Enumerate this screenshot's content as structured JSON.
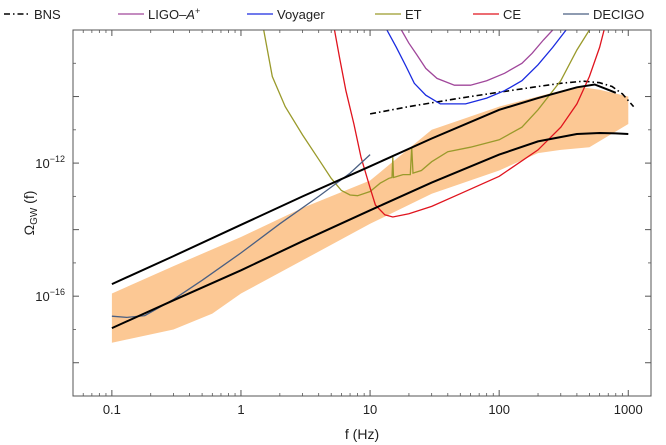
{
  "chart_data": {
    "type": "line",
    "title": "",
    "xlabel": "f (Hz)",
    "ylabel": "Ω_GW (f)",
    "ylabel_parts": {
      "main": "Ω",
      "sub": "GW",
      "rest": " (f)"
    },
    "x_scale": "log",
    "y_scale": "log",
    "xlim": [
      0.05,
      1500
    ],
    "ylim": [
      1e-19,
      1e-08
    ],
    "grid": false,
    "legend_position": "top",
    "x_ticks": [
      {
        "value": 0.1,
        "label": "0.1"
      },
      {
        "value": 1,
        "label": "1"
      },
      {
        "value": 10,
        "label": "10"
      },
      {
        "value": 100,
        "label": "100"
      },
      {
        "value": 1000,
        "label": "1000"
      }
    ],
    "y_ticks": [
      {
        "value": 1e-16,
        "base": "10",
        "exp": "−16"
      },
      {
        "value": 1e-12,
        "base": "10",
        "exp": "−12"
      }
    ],
    "legend": [
      {
        "name": "BNS",
        "color": "#000000",
        "dash": "dashdot"
      },
      {
        "name": "LIGO–A",
        "sup": "+",
        "color": "#a0479b",
        "dash": "solid"
      },
      {
        "name": "Voyager",
        "color": "#1a2be0",
        "dash": "solid"
      },
      {
        "name": "ET",
        "color": "#9a9a2b",
        "dash": "solid"
      },
      {
        "name": "CE",
        "color": "#e0141e",
        "dash": "solid"
      },
      {
        "name": "DECIGO",
        "color": "#4a5f82",
        "dash": "solid"
      }
    ],
    "band": {
      "color": "#fcc894",
      "upper": [
        [
          0.1,
          1.2e-16
        ],
        [
          0.3,
          8e-16
        ],
        [
          1,
          6e-15
        ],
        [
          3,
          4.5e-14
        ],
        [
          10,
          3e-13
        ],
        [
          30,
          1e-11
        ],
        [
          100,
          5e-11
        ],
        [
          200,
          1e-10
        ],
        [
          400,
          2e-10
        ],
        [
          600,
          1.6e-10
        ],
        [
          1000,
          1e-10
        ]
      ],
      "lower": [
        [
          0.1,
          4e-18
        ],
        [
          0.3,
          1e-17
        ],
        [
          0.6,
          3e-17
        ],
        [
          1,
          1.2e-16
        ],
        [
          3,
          1.2e-15
        ],
        [
          10,
          1.5e-14
        ],
        [
          30,
          1.2e-13
        ],
        [
          100,
          6e-13
        ],
        [
          200,
          2e-12
        ],
        [
          300,
          2.5e-12
        ],
        [
          500,
          3e-12
        ],
        [
          1000,
          1.5e-11
        ]
      ]
    },
    "envelope_upper": {
      "color": "#000000",
      "points": [
        [
          0.1,
          2.3e-16
        ],
        [
          0.3,
          1.6e-15
        ],
        [
          1,
          1.4e-14
        ],
        [
          3,
          1e-13
        ],
        [
          10,
          8e-13
        ],
        [
          30,
          5.5e-12
        ],
        [
          100,
          4e-11
        ],
        [
          200,
          9e-11
        ],
        [
          400,
          1.9e-10
        ],
        [
          550,
          2.3e-10
        ],
        [
          700,
          1.6e-10
        ],
        [
          800,
          1.3e-10
        ]
      ]
    },
    "envelope_lower": {
      "color": "#000000",
      "points": [
        [
          0.1,
          1.1e-17
        ],
        [
          0.3,
          7.5e-17
        ],
        [
          1,
          6e-16
        ],
        [
          3,
          4.5e-15
        ],
        [
          10,
          3.8e-14
        ],
        [
          30,
          2.6e-13
        ],
        [
          100,
          1.8e-12
        ],
        [
          200,
          4.5e-12
        ],
        [
          400,
          7.5e-12
        ],
        [
          600,
          8e-12
        ],
        [
          800,
          7.8e-12
        ],
        [
          1000,
          7.5e-12
        ]
      ]
    },
    "series": [
      {
        "name": "BNS",
        "color": "#000000",
        "dash": "dashdot",
        "points": [
          [
            10,
            3e-11
          ],
          [
            20,
            5e-11
          ],
          [
            50,
            9e-11
          ],
          [
            100,
            1.35e-10
          ],
          [
            200,
            2e-10
          ],
          [
            300,
            2.5e-10
          ],
          [
            450,
            2.9e-10
          ],
          [
            600,
            2.6e-10
          ],
          [
            750,
            2e-10
          ],
          [
            900,
            1.2e-10
          ],
          [
            1100,
            5e-11
          ]
        ]
      },
      {
        "name": "LIGO–A+",
        "color": "#a0479b",
        "dash": "solid",
        "points": [
          [
            17.5,
            1e-08
          ],
          [
            20,
            4e-09
          ],
          [
            23,
            1.8e-09
          ],
          [
            27,
            7e-10
          ],
          [
            33,
            3.5e-10
          ],
          [
            45,
            2.2e-10
          ],
          [
            60,
            2.2e-10
          ],
          [
            80,
            3e-10
          ],
          [
            110,
            5e-10
          ],
          [
            150,
            1e-09
          ],
          [
            180,
            2e-09
          ],
          [
            220,
            5e-09
          ],
          [
            260,
            1e-08
          ]
        ]
      },
      {
        "name": "Voyager",
        "color": "#1a2be0",
        "dash": "solid",
        "points": [
          [
            13.5,
            1e-08
          ],
          [
            16,
            3e-09
          ],
          [
            19,
            8e-10
          ],
          [
            22,
            2.5e-10
          ],
          [
            27,
            1.1e-10
          ],
          [
            35,
            6e-11
          ],
          [
            55,
            6e-11
          ],
          [
            80,
            9e-11
          ],
          [
            110,
            1.5e-10
          ],
          [
            150,
            3e-10
          ],
          [
            200,
            9e-10
          ],
          [
            260,
            3e-09
          ],
          [
            330,
            1e-08
          ]
        ]
      },
      {
        "name": "ET",
        "color": "#9a9a2b",
        "dash": "solid",
        "points": [
          [
            1.5,
            1e-08
          ],
          [
            1.75,
            4e-10
          ],
          [
            2.2,
            5e-11
          ],
          [
            3,
            7e-12
          ],
          [
            4,
            1.3e-12
          ],
          [
            5,
            3.5e-13
          ],
          [
            6,
            1.5e-13
          ],
          [
            7,
            1.1e-13
          ],
          [
            8,
            1.05e-13
          ],
          [
            10,
            1.4e-13
          ],
          [
            12,
            2.5e-13
          ],
          [
            14,
            3.5e-13
          ],
          [
            14.8,
            3.7e-13
          ],
          [
            15,
            1.5e-12
          ],
          [
            15.2,
            3.7e-13
          ],
          [
            18,
            4.5e-13
          ],
          [
            20.5,
            4.5e-13
          ],
          [
            21,
            3e-12
          ],
          [
            21.5,
            5e-13
          ],
          [
            25,
            6e-13
          ],
          [
            30,
            1.1e-12
          ],
          [
            40,
            2.2e-12
          ],
          [
            60,
            3e-12
          ],
          [
            100,
            5e-12
          ],
          [
            150,
            1.2e-11
          ],
          [
            200,
            4e-11
          ],
          [
            300,
            3e-10
          ],
          [
            400,
            2.5e-09
          ],
          [
            500,
            1e-08
          ]
        ]
      },
      {
        "name": "CE",
        "color": "#e0141e",
        "dash": "solid",
        "points": [
          [
            5.3,
            1e-08
          ],
          [
            5.8,
            1.5e-09
          ],
          [
            6.5,
            1.5e-10
          ],
          [
            7.5,
            1.5e-11
          ],
          [
            8.5,
            1.5e-12
          ],
          [
            10,
            1.8e-13
          ],
          [
            11,
            5.5e-14
          ],
          [
            13,
            2.8e-14
          ],
          [
            15,
            2.4e-14
          ],
          [
            20,
            3e-14
          ],
          [
            30,
            5e-14
          ],
          [
            50,
            1.2e-13
          ],
          [
            100,
            4e-13
          ],
          [
            200,
            2.5e-12
          ],
          [
            300,
            1.2e-11
          ],
          [
            400,
            6e-11
          ],
          [
            500,
            4e-10
          ],
          [
            600,
            3e-09
          ],
          [
            650,
            1e-08
          ]
        ]
      },
      {
        "name": "DECIGO",
        "color": "#4a5f82",
        "dash": "solid",
        "points": [
          [
            0.1,
            2.5e-17
          ],
          [
            0.13,
            2.3e-17
          ],
          [
            0.18,
            2.6e-17
          ],
          [
            0.3,
            8e-17
          ],
          [
            0.5,
            3e-16
          ],
          [
            1,
            2e-15
          ],
          [
            2,
            1.5e-14
          ],
          [
            4,
            1e-13
          ],
          [
            7,
            5e-13
          ],
          [
            10,
            1.8e-12
          ]
        ]
      }
    ]
  }
}
